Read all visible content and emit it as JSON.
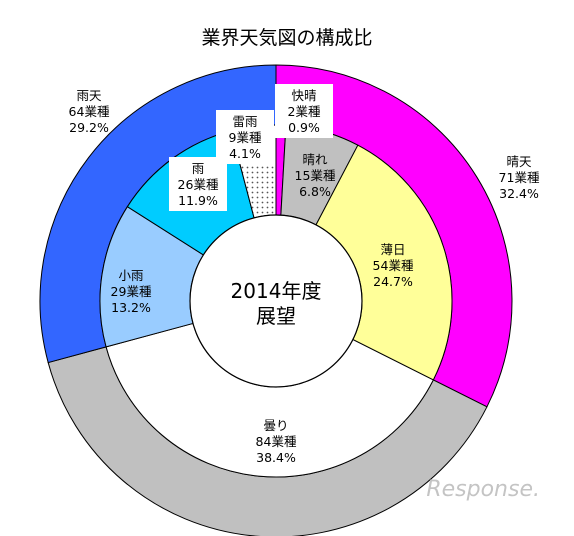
{
  "chart_data": {
    "type": "pie",
    "title": "業界天気図の構成比",
    "center_label": [
      "2014年度",
      "展望"
    ],
    "outer_ring": [
      {
        "name": "晴天",
        "count_label": "71業種",
        "value": 32.4,
        "color": "#ff00ff"
      },
      {
        "name": "曇り",
        "count_label": "84業種",
        "value": 38.4,
        "color": "#c0c0c0"
      },
      {
        "name": "雨天",
        "count_label": "64業種",
        "value": 29.2,
        "color": "#3366ff"
      }
    ],
    "inner_ring": [
      {
        "name": "快晴",
        "count_label": "2業種",
        "value": 0.9,
        "color": "#ff00ff"
      },
      {
        "name": "晴れ",
        "count_label": "15業種",
        "value": 6.8,
        "color": "#c0c0c0"
      },
      {
        "name": "薄日",
        "count_label": "54業種",
        "value": 24.7,
        "color": "#ffff99"
      },
      {
        "name": "曇り",
        "count_label": "84業種",
        "value": 38.4,
        "color": "#ffffff"
      },
      {
        "name": "小雨",
        "count_label": "29業種",
        "value": 13.2,
        "color": "#99ccff"
      },
      {
        "name": "雨",
        "count_label": "26業種",
        "value": 11.9,
        "color": "#00ccff"
      },
      {
        "name": "雷雨",
        "count_label": "9業種",
        "value": 4.1,
        "color": "#ffffff",
        "pattern": "dots"
      }
    ],
    "value_unit": "%"
  },
  "watermark": "Response."
}
